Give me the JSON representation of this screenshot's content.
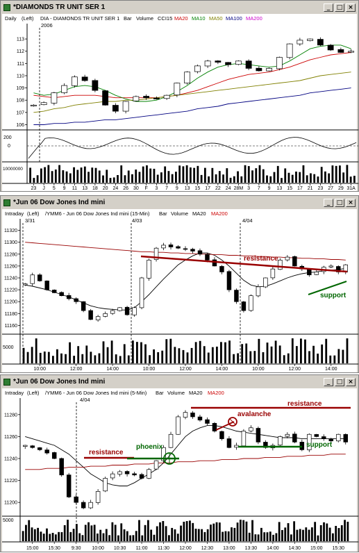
{
  "colors": {
    "ma20": "#cc0000",
    "ma10": "#008000",
    "ma50": "#808000",
    "ma100": "#000080",
    "ma200": "#cc00cc",
    "dark_red": "#990000",
    "dark_green": "#006600"
  },
  "windows": [
    {
      "title": "*DIAMONDS TR UNIT SER 1",
      "header": [
        "Daily",
        "(Left)",
        "DIA - DIAMONDS TR UNIT SER 1",
        "Bar",
        "Volume",
        "CCI15",
        "MA20",
        "MA10",
        "MA50",
        "MA100",
        "MA200"
      ],
      "session_label": "2006",
      "price_ticks": [
        "113",
        "112",
        "111",
        "110",
        "109",
        "108",
        "107",
        "106"
      ],
      "cci_ticks": [
        "200",
        "0"
      ],
      "vol_tick": "10000000",
      "x_labels": [
        "23",
        "J",
        "5",
        "9",
        "11",
        "13",
        "18",
        "20",
        "24",
        "26",
        "30",
        "F",
        "3",
        "7",
        "9",
        "13",
        "15",
        "17",
        "22",
        "24",
        "28M",
        "3",
        "7",
        "9",
        "13",
        "15",
        "17",
        "21",
        "23",
        "27",
        "29",
        "31A"
      ]
    },
    {
      "title": "*Jun 06  Dow Jones Ind mini",
      "header": [
        "Intraday",
        "(Left)",
        "/YMM6 - Jun 06 Dow Jones Ind mini (15-Min)",
        "Bar",
        "Volume",
        "MA20",
        "MA200"
      ],
      "session_labels": [
        "3/31",
        "4/03",
        "4/04"
      ],
      "price_ticks": [
        "11320",
        "11300",
        "11280",
        "11260",
        "11240",
        "11220",
        "11200",
        "11180",
        "11160"
      ],
      "vol_tick": "5000",
      "x_labels": [
        "10:00",
        "12:00",
        "14:00",
        "10:00",
        "12:00",
        "14:00",
        "10:00",
        "12:00",
        "14:00"
      ],
      "annotations": {
        "resistance": "resistance",
        "support": "support"
      }
    },
    {
      "title": "*Jun 06  Dow Jones Ind mini",
      "header": [
        "Intraday",
        "(Left)",
        "/YMM6 - Jun 06 Dow Jones Ind mini (5-Min)",
        "Bar",
        "Volume",
        "MA20",
        "MA200"
      ],
      "session_label": "4/04",
      "price_ticks": [
        "11280",
        "11260",
        "11240",
        "11220",
        "11200"
      ],
      "vol_tick": "5000",
      "x_labels": [
        "15:00",
        "15:30",
        "9:30",
        "10:00",
        "10:30",
        "11:00",
        "11:30",
        "12:00",
        "12:30",
        "13:00",
        "13:30",
        "14:00",
        "14:30",
        "15:00",
        "15:30"
      ],
      "annotations": {
        "resistance_left": "resistance",
        "phoenix": "phoenix",
        "avalanche": "avalanche",
        "resistance_right": "resistance",
        "support": "support"
      }
    }
  ],
  "chart_data": [
    {
      "type": "candlestick",
      "title": "DIA - DIAMONDS TR UNIT SER 1",
      "ylim": [
        105.8,
        113.8
      ],
      "x": [
        "23",
        "J",
        "5",
        "9",
        "11",
        "13",
        "18",
        "20",
        "24",
        "26",
        "30",
        "F",
        "3",
        "7",
        "9",
        "13",
        "15",
        "17",
        "22",
        "24",
        "28M",
        "3",
        "7",
        "9",
        "13",
        "15",
        "17",
        "21",
        "23",
        "27",
        "29",
        "31A"
      ],
      "series": [
        {
          "name": "Price",
          "close": [
            107.6,
            107.8,
            108.6,
            109.2,
            109.9,
            109.6,
            108.8,
            107.6,
            107.1,
            107.9,
            108.3,
            108.2,
            108.1,
            108.4,
            109.4,
            110.3,
            110.8,
            111.2,
            111.1,
            110.9,
            111.2,
            110.6,
            110.4,
            110.6,
            111.5,
            112.6,
            112.9,
            113.0,
            112.5,
            112.1,
            111.9,
            112.0
          ]
        },
        {
          "name": "MA20",
          "values": [
            108.4,
            108.3,
            108.2,
            108.3,
            108.4,
            108.4,
            108.4,
            108.3,
            108.2,
            108.2,
            108.2,
            108.2,
            108.2,
            108.3,
            108.4,
            108.6,
            108.8,
            109.1,
            109.4,
            109.7,
            109.9,
            110.1,
            110.2,
            110.3,
            110.5,
            110.7,
            111.0,
            111.3,
            111.5,
            111.7,
            111.8,
            111.9
          ]
        },
        {
          "name": "MA10",
          "values": [
            108.6,
            108.4,
            108.5,
            108.8,
            109.1,
            109.2,
            109.1,
            108.8,
            108.4,
            108.1,
            107.9,
            107.9,
            108.0,
            108.3,
            108.7,
            109.2,
            109.8,
            110.3,
            110.7,
            110.9,
            111.0,
            110.9,
            110.8,
            110.7,
            110.8,
            111.2,
            111.7,
            112.2,
            112.4,
            112.5,
            112.5,
            112.2
          ]
        },
        {
          "name": "MA50",
          "values": [
            107.0,
            107.1,
            107.3,
            107.4,
            107.6,
            107.7,
            107.8,
            107.9,
            107.9,
            108.0,
            108.0,
            108.1,
            108.2,
            108.3,
            108.4,
            108.5,
            108.6,
            108.7,
            108.8,
            108.9,
            109.0,
            109.1,
            109.2,
            109.3,
            109.4,
            109.5,
            109.6,
            109.8,
            110.0,
            110.1,
            110.2,
            110.3
          ]
        },
        {
          "name": "MA100",
          "values": [
            106.0,
            106.0,
            106.1,
            106.1,
            106.2,
            106.2,
            106.3,
            106.4,
            106.4,
            106.5,
            106.6,
            106.7,
            106.8,
            106.9,
            107.0,
            107.1,
            107.3,
            107.4,
            107.5,
            107.7,
            107.8,
            107.9,
            108.0,
            108.1,
            108.2,
            108.3,
            108.4,
            108.6,
            108.7,
            108.8,
            108.9,
            109.0
          ]
        }
      ]
    },
    {
      "type": "candlestick",
      "title": "/YMM6 - Jun 06 Dow Jones Ind mini (15-Min)",
      "ylim": [
        11150,
        11330
      ],
      "series": [
        {
          "name": "Price",
          "close": [
            11230,
            11245,
            11235,
            11220,
            11215,
            11210,
            11205,
            11200,
            11185,
            11170,
            11175,
            11180,
            11185,
            11190,
            11178,
            11190,
            11240,
            11270,
            11290,
            11295,
            11292,
            11290,
            11288,
            11285,
            11280,
            11270,
            11260,
            11250,
            11220,
            11200,
            11185,
            11210,
            11225,
            11240,
            11255,
            11270,
            11275,
            11260,
            11255,
            11245,
            11250,
            11258,
            11260,
            11250,
            11262
          ]
        },
        {
          "name": "MA20",
          "values": [
            11228,
            11226,
            11223,
            11220,
            11216,
            11212,
            11208,
            11203,
            11198,
            11193,
            11190,
            11188,
            11187,
            11186,
            11186,
            11190,
            11200,
            11212,
            11225,
            11238,
            11250,
            11262,
            11270,
            11277,
            11282,
            11282,
            11278,
            11270,
            11260,
            11248,
            11236,
            11228,
            11225,
            11226,
            11230,
            11235,
            11240,
            11244,
            11247,
            11249,
            11250,
            11252,
            11253,
            11254,
            11256
          ]
        },
        {
          "name": "MA200",
          "values": [
            11300,
            11299,
            11298,
            11297,
            11296,
            11295,
            11294,
            11293,
            11292,
            11291,
            11290,
            11289,
            11288,
            11287,
            11286,
            11285,
            11284,
            11284,
            11283,
            11283,
            11282,
            11282,
            11281,
            11281,
            11280,
            11280,
            11279,
            11279,
            11278,
            11278,
            11277,
            11277,
            11276,
            11276,
            11275,
            11275,
            11274,
            11274,
            11273,
            11273,
            11272,
            11272,
            11271,
            11271,
            11270
          ]
        }
      ]
    },
    {
      "type": "candlestick",
      "title": "/YMM6 - Jun 06 Dow Jones Ind mini (5-Min)",
      "ylim": [
        11190,
        11290
      ],
      "series": [
        {
          "name": "Price",
          "close": [
            11252,
            11250,
            11248,
            11245,
            11240,
            11225,
            11205,
            11200,
            11195,
            11200,
            11210,
            11222,
            11226,
            11228,
            11226,
            11225,
            11222,
            11230,
            11238,
            11250,
            11262,
            11278,
            11282,
            11278,
            11275,
            11272,
            11265,
            11258,
            11250,
            11252,
            11265,
            11268,
            11255,
            11250,
            11252,
            11260,
            11262,
            11255,
            11248,
            11262,
            11260,
            11258,
            11256,
            11262,
            11255
          ]
        },
        {
          "name": "MA20",
          "values": [
            11260,
            11258,
            11256,
            11254,
            11252,
            11248,
            11244,
            11238,
            11232,
            11226,
            11222,
            11218,
            11216,
            11215,
            11215,
            11218,
            11222,
            11226,
            11230,
            11236,
            11244,
            11252,
            11260,
            11265,
            11268,
            11270,
            11270,
            11269,
            11267,
            11265,
            11264,
            11263,
            11262,
            11261,
            11260,
            11259,
            11259,
            11259,
            11258,
            11258,
            11258,
            11258,
            11258,
            11258,
            11258
          ]
        },
        {
          "name": "MA200",
          "values": [
            11230,
            11230,
            11230,
            11231,
            11231,
            11231,
            11232,
            11232,
            11232,
            11233,
            11233,
            11233,
            11234,
            11234,
            11234,
            11235,
            11235,
            11235,
            11236,
            11236,
            11236,
            11237,
            11237,
            11237,
            11238,
            11238,
            11238,
            11239,
            11239,
            11239,
            11240,
            11240,
            11240,
            11241,
            11241,
            11241,
            11242,
            11242,
            11242,
            11243,
            11243,
            11243,
            11244,
            11244,
            11244
          ]
        }
      ]
    }
  ]
}
